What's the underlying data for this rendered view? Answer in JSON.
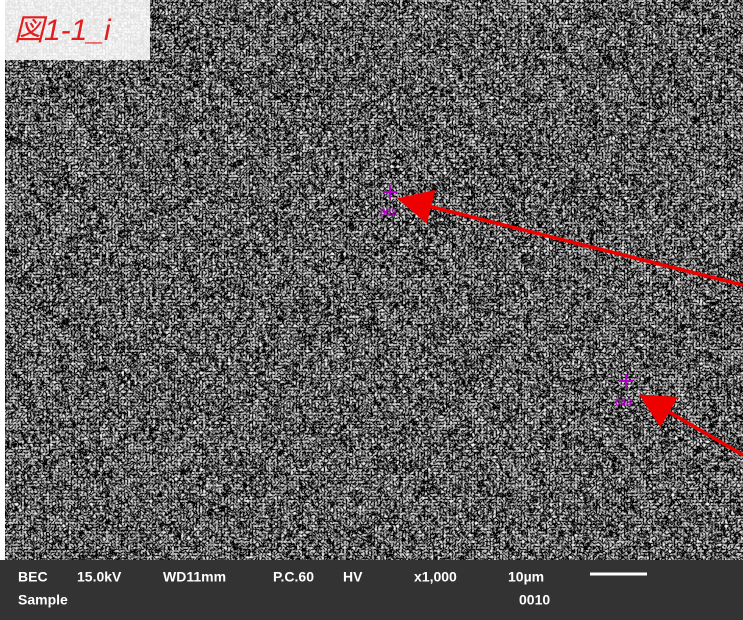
{
  "label": "図1-1_i",
  "points": [
    {
      "label": "002"
    },
    {
      "label": "003"
    }
  ],
  "info_bar": {
    "row1": [
      "BEC",
      "15.0kV",
      "WD11mm",
      "P.C.60",
      "HV",
      "x1,000",
      "10µm"
    ],
    "row2": [
      "Sample",
      "0010"
    ]
  }
}
